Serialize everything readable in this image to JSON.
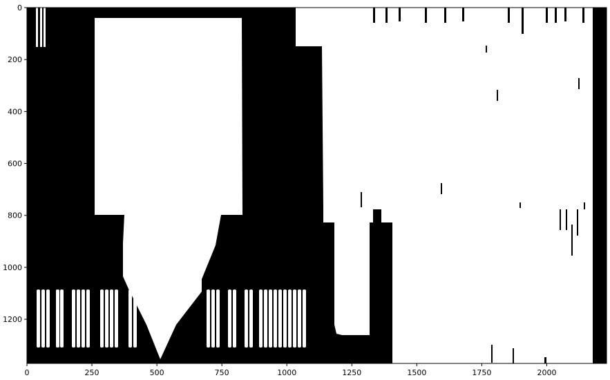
{
  "plot": {
    "type": "image",
    "colormap": "binary (black/white mask)",
    "x_ticks": [
      "0",
      "250",
      "500",
      "750",
      "1000",
      "1250",
      "1500",
      "1750",
      "2000"
    ],
    "y_ticks": [
      "0",
      "200",
      "400",
      "600",
      "800",
      "1000",
      "1200"
    ],
    "xlim": [
      0,
      2230
    ],
    "ylim": [
      1370,
      0
    ],
    "grid": false,
    "colors": {
      "foreground": "#000000",
      "background": "#ffffff"
    }
  }
}
